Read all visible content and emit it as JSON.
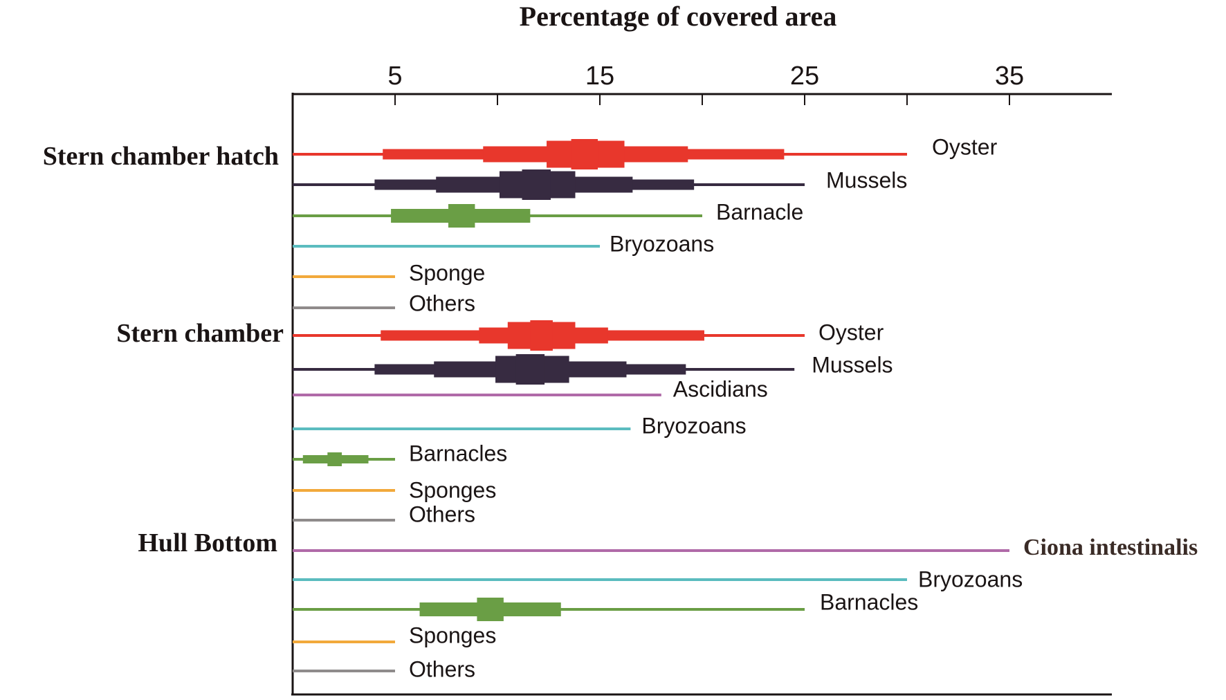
{
  "chart_data": {
    "type": "range-bar",
    "title": "Percentage of covered area",
    "xlabel": "Percentage of covered area",
    "ylabel": "",
    "xlim": [
      0,
      40
    ],
    "x_ticks": [
      5,
      10,
      15,
      20,
      25,
      30,
      35
    ],
    "x_tick_labels": [
      "5",
      "15",
      "25",
      "35"
    ],
    "x_tick_label_values": [
      5,
      15,
      25,
      35
    ],
    "grid": false,
    "colors": {
      "oyster": "#e8372c",
      "mussels": "#372b41",
      "barnacle": "#6a9e45",
      "bryozoans": "#5bbcbf",
      "sponge": "#f2a93b",
      "others": "#8f8b8b",
      "ascidians": "#b06aa8",
      "axis": "#1a1414"
    },
    "groups": [
      {
        "label": "Stern chamber hatch",
        "series": [
          {
            "name": "Oyster",
            "color_key": "oyster",
            "range": [
              0,
              30
            ],
            "levels": [
              [
                4.4,
                24.0
              ],
              [
                9.3,
                19.3
              ],
              [
                12.4,
                16.2
              ],
              [
                13.6,
                14.9
              ]
            ]
          },
          {
            "name": "Mussels",
            "color_key": "mussels",
            "range": [
              0,
              25
            ],
            "levels": [
              [
                4.0,
                19.6
              ],
              [
                7.0,
                16.6
              ],
              [
                10.1,
                13.8
              ],
              [
                11.2,
                12.6
              ]
            ]
          },
          {
            "name": "Barnacle",
            "color_key": "barnacle",
            "range": [
              0,
              20
            ],
            "levels": [
              [
                4.8,
                11.6
              ],
              [
                7.6,
                8.9
              ]
            ]
          },
          {
            "name": "Bryozoans",
            "color_key": "bryozoans",
            "range": [
              0,
              15
            ],
            "levels": []
          },
          {
            "name": "Sponge",
            "color_key": "sponge",
            "range": [
              0,
              5
            ],
            "levels": []
          },
          {
            "name": "Others",
            "color_key": "others",
            "range": [
              0,
              5
            ],
            "levels": []
          }
        ]
      },
      {
        "label": "Stern chamber",
        "series": [
          {
            "name": "Oyster",
            "color_key": "oyster",
            "range": [
              0,
              25
            ],
            "levels": [
              [
                4.3,
                20.1
              ],
              [
                9.1,
                15.4
              ],
              [
                10.5,
                13.8
              ],
              [
                11.6,
                12.7
              ]
            ]
          },
          {
            "name": "Mussels",
            "color_key": "mussels",
            "range": [
              0,
              24.5
            ],
            "levels": [
              [
                4.0,
                19.2
              ],
              [
                6.9,
                16.3
              ],
              [
                9.9,
                13.5
              ],
              [
                10.9,
                12.3
              ]
            ]
          },
          {
            "name": "Ascidians",
            "color_key": "ascidians",
            "range": [
              0,
              18
            ],
            "levels": []
          },
          {
            "name": "Bryozoans",
            "color_key": "bryozoans",
            "range": [
              0,
              16.5
            ],
            "levels": []
          },
          {
            "name": "Barnacles",
            "color_key": "barnacle",
            "range": [
              0,
              5
            ],
            "levels": [
              [
                0.5,
                3.7
              ],
              [
                1.7,
                2.4
              ]
            ]
          },
          {
            "name": "Sponges",
            "color_key": "sponge",
            "range": [
              0,
              5
            ],
            "levels": []
          },
          {
            "name": "Others",
            "color_key": "others",
            "range": [
              0,
              5
            ],
            "levels": []
          }
        ]
      },
      {
        "label": "Hull Bottom",
        "series": [
          {
            "name": "Ciona intestinalis",
            "color_key": "ascidians",
            "range": [
              0,
              35
            ],
            "levels": []
          },
          {
            "name": "Bryozoans",
            "color_key": "bryozoans",
            "range": [
              0,
              30
            ],
            "levels": []
          },
          {
            "name": "Barnacles",
            "color_key": "barnacle",
            "range": [
              0,
              25
            ],
            "levels": [
              [
                6.2,
                13.1
              ],
              [
                9.0,
                10.3
              ]
            ]
          },
          {
            "name": "Sponges",
            "color_key": "sponge",
            "range": [
              0,
              5
            ],
            "levels": []
          },
          {
            "name": "Others",
            "color_key": "others",
            "range": [
              0,
              5
            ],
            "levels": []
          }
        ]
      }
    ]
  }
}
